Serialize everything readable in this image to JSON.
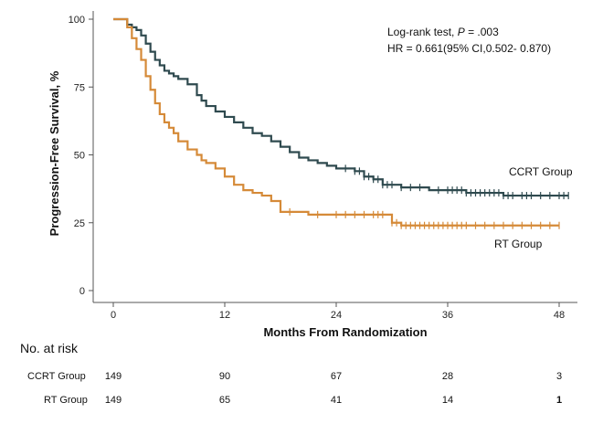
{
  "chart_data": {
    "type": "line",
    "xlabel": "Months From Randomization",
    "ylabel": "Progression-Free Survival, %",
    "xlim": [
      0,
      48
    ],
    "ylim": [
      0,
      100
    ],
    "xticks": [
      0,
      12,
      24,
      36,
      48
    ],
    "yticks": [
      0,
      25,
      50,
      75,
      100
    ],
    "xtick_labels": [
      "0",
      "12",
      "24",
      "36",
      "48"
    ],
    "ytick_labels": [
      "0",
      "25",
      "50",
      "75",
      "100"
    ],
    "annotation": {
      "test_label": "Log-rank test, ",
      "p_symbol": "P",
      "p_value": " = .003",
      "hr_text": "HR = 0.661(95% CI,0.502- 0.870)"
    },
    "series": [
      {
        "name": "CCRT Group",
        "color": "#2f4a4f",
        "x": [
          0,
          1,
          1.5,
          2,
          2.5,
          3,
          3.5,
          4,
          4.5,
          5,
          5.5,
          6,
          6.5,
          7,
          8,
          9,
          9.5,
          10,
          11,
          12,
          13,
          14,
          15,
          16,
          17,
          18,
          19,
          20,
          21,
          22,
          23,
          24,
          25,
          26,
          27,
          28,
          29,
          30,
          31,
          32,
          34,
          36,
          38,
          40,
          42,
          44,
          46,
          48,
          49
        ],
        "y": [
          100,
          100,
          98,
          97,
          96,
          94,
          91,
          88,
          85,
          83,
          81,
          80,
          79,
          78,
          76,
          72,
          70,
          68,
          66,
          64,
          62,
          60,
          58,
          57,
          55,
          53,
          51,
          49,
          48,
          47,
          46,
          45,
          45,
          44,
          42,
          41,
          39,
          39,
          38,
          38,
          37,
          37,
          36,
          36,
          35,
          35,
          35,
          35,
          35
        ],
        "censor_x": [
          25,
          26,
          26.5,
          27,
          27.5,
          28,
          28.5,
          29,
          29.5,
          30,
          31,
          32,
          33,
          35,
          36,
          36.5,
          37,
          37.5,
          38,
          38.5,
          39,
          39.5,
          40,
          40.5,
          41,
          41.5,
          42,
          42.5,
          43,
          44,
          44.5,
          45,
          46,
          47,
          48,
          48.5,
          49
        ]
      },
      {
        "name": "RT Group",
        "color": "#d58a38",
        "x": [
          0,
          1,
          1.5,
          2,
          2.5,
          3,
          3.5,
          4,
          4.5,
          5,
          5.5,
          6,
          6.5,
          7,
          8,
          9,
          9.5,
          10,
          11,
          12,
          13,
          14,
          15,
          16,
          17,
          18,
          19,
          20,
          21,
          22,
          24,
          26,
          28,
          30,
          31,
          32,
          34,
          36,
          38,
          40,
          42,
          44,
          46,
          48
        ],
        "y": [
          100,
          100,
          97,
          93,
          89,
          85,
          79,
          74,
          69,
          65,
          62,
          60,
          58,
          55,
          52,
          50,
          48,
          47,
          45,
          42,
          39,
          37,
          36,
          35,
          33,
          29,
          29,
          29,
          28,
          28,
          28,
          28,
          28,
          25,
          24,
          24,
          24,
          24,
          24,
          24,
          24,
          24,
          24,
          24
        ],
        "censor_x": [
          19,
          22,
          24,
          25,
          26,
          27,
          28,
          28.5,
          29,
          30,
          30.5,
          31,
          31.5,
          32,
          32.5,
          33,
          33.5,
          34,
          34.5,
          35,
          35.5,
          36,
          36.5,
          37,
          37.5,
          38,
          39,
          40,
          41,
          42,
          43,
          44,
          45,
          46,
          47,
          48
        ]
      }
    ],
    "risk_table": {
      "title": "No. at risk",
      "rows": [
        {
          "label": "CCRT Group",
          "values": [
            "149",
            "90",
            "67",
            "28",
            "3"
          ]
        },
        {
          "label": "RT Group",
          "values": [
            "149",
            "65",
            "41",
            "14",
            "1"
          ]
        }
      ]
    }
  }
}
